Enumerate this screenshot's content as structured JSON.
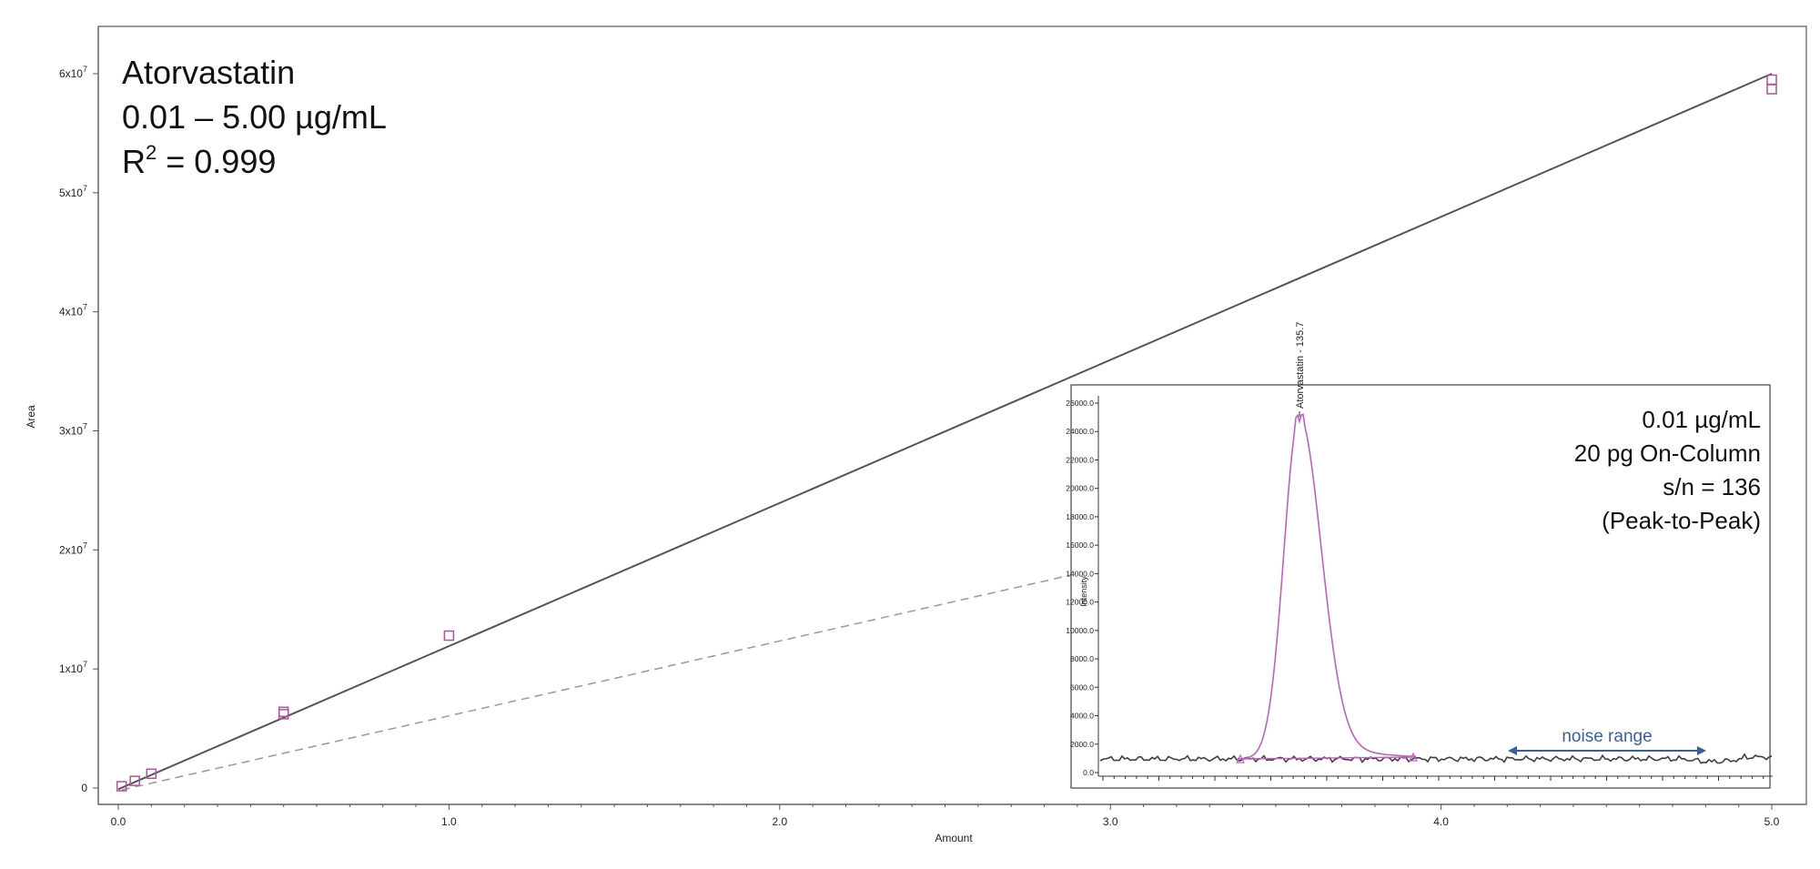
{
  "chart_data": [
    {
      "type": "scatter",
      "xlabel": "Amount",
      "ylabel": "Area",
      "xlim": [
        0,
        5
      ],
      "ylim": [
        0,
        60000000
      ],
      "x_ticks": [
        0,
        1,
        2,
        3,
        4,
        5
      ],
      "x_tick_labels": [
        "0.0",
        "1.0",
        "2.0",
        "3.0",
        "4.0",
        "5.0"
      ],
      "y_ticks": [
        0,
        10000000,
        20000000,
        30000000,
        40000000,
        50000000,
        60000000
      ],
      "y_tick_labels": [
        {
          "text": "0",
          "exp": ""
        },
        {
          "text": "1x10",
          "exp": "7"
        },
        {
          "text": "2x10",
          "exp": "7"
        },
        {
          "text": "3x10",
          "exp": "7"
        },
        {
          "text": "4x10",
          "exp": "7"
        },
        {
          "text": "5x10",
          "exp": "7"
        },
        {
          "text": "6x10",
          "exp": "7"
        }
      ],
      "annotation": {
        "compound": "Atorvastatin",
        "range": "0.01 – 5.00 µg/mL",
        "r2_prefix": "R",
        "r2_sup": "2",
        "r2_value": " = 0.999"
      },
      "points": {
        "x": [
          0.01,
          0.05,
          0.1,
          0.5,
          0.5,
          1.0,
          5.0,
          5.0
        ],
        "y": [
          150000,
          600000,
          1200000,
          6200000,
          6400000,
          12800000,
          58700000,
          59500000
        ]
      },
      "fit_line": {
        "x": [
          0.0,
          5.0
        ],
        "y": [
          -100000,
          60000000
        ]
      },
      "grid": false
    },
    {
      "type": "line",
      "ylabel": "Intensity",
      "ylim": [
        0,
        27000
      ],
      "y_ticks": [
        0,
        2000,
        4000,
        6000,
        8000,
        10000,
        12000,
        14000,
        16000,
        18000,
        20000,
        22000,
        24000,
        26000
      ],
      "y_tick_labels": [
        "0.0",
        "2000.0",
        "4000.0",
        "6000.0",
        "8000.0",
        "10000.0",
        "12000.0",
        "14000.0",
        "16000.0",
        "18000.0",
        "20000.0",
        "22000.0",
        "24000.0",
        "26000.0"
      ],
      "peak_label": "Atorvastatin - 135.7",
      "annotation_lines": [
        "0.01 µg/mL",
        "20 pg On-Column",
        "s/n = 136",
        "(Peak-to-Peak)"
      ],
      "noise_label": "noise range",
      "colors": {
        "peak": "#c060c0",
        "baseline": "#404040",
        "noise": "#3a5f9f"
      }
    }
  ]
}
